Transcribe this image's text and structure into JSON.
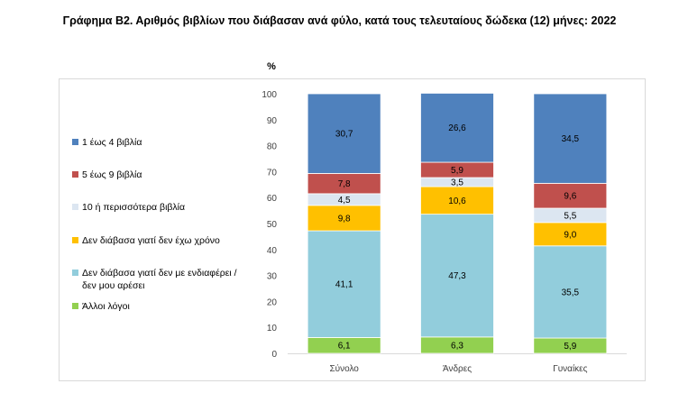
{
  "title": "Γράφημα Β2. Αριθμός βιβλίων που διάβασαν ανά φύλο, κατά τους τελευταίους δώδεκα (12) μήνες: 2022",
  "chart_data": {
    "type": "bar",
    "stacked": true,
    "title": "Γράφημα Β2. Αριθμός βιβλίων που διάβασαν ανά φύλο, κατά τους τελευταίους δώδεκα (12) μήνες: 2022",
    "ylabel": "%",
    "ylim": [
      0,
      100
    ],
    "yticks": [
      0,
      10,
      20,
      30,
      40,
      50,
      60,
      70,
      80,
      90,
      100
    ],
    "categories": [
      "Σύνολο",
      "Άνδρες",
      "Γυναίκες"
    ],
    "series": [
      {
        "name": "Άλλοι λόγοι",
        "color": "#92d050",
        "values": [
          6.1,
          6.3,
          5.9
        ],
        "labels": [
          "6,1",
          "6,3",
          "5,9"
        ]
      },
      {
        "name": "Δεν διάβασα γιατί δεν με ενδιαφέρει / δεν μου αρέσει",
        "label_lines": [
          "Δεν διάβασα γιατί δεν με ενδιαφέρει /",
          "δεν μου αρέσει"
        ],
        "color": "#92cddc",
        "values": [
          41.1,
          47.3,
          35.5
        ],
        "labels": [
          "41,1",
          "47,3",
          "35,5"
        ]
      },
      {
        "name": "Δεν διάβασα γιατί δεν έχω χρόνο",
        "color": "#ffc000",
        "values": [
          9.8,
          10.6,
          9.0
        ],
        "labels": [
          "9,8",
          "10,6",
          "9,0"
        ]
      },
      {
        "name": "10 ή περισσότερα βιβλία",
        "color": "#dce6f1",
        "values": [
          4.5,
          3.5,
          5.5
        ],
        "labels": [
          "4,5",
          "3,5",
          "5,5"
        ]
      },
      {
        "name": "5 έως 9 βιβλία",
        "color": "#c0504d",
        "values": [
          7.8,
          5.9,
          9.6
        ],
        "labels": [
          "7,8",
          "5,9",
          "9,6"
        ]
      },
      {
        "name": "1 έως 4 βιβλία",
        "color": "#4f81bd",
        "values": [
          30.7,
          26.6,
          34.5
        ],
        "labels": [
          "30,7",
          "26,6",
          "34,5"
        ]
      }
    ],
    "legend": [
      {
        "name": "1 έως 4 βιβλία",
        "color": "#4f81bd"
      },
      {
        "name": "5 έως 9 βιβλία",
        "color": "#c0504d"
      },
      {
        "name": "10 ή περισσότερα βιβλία",
        "color": "#dce6f1"
      },
      {
        "name": "Δεν διάβασα γιατί δεν έχω χρόνο",
        "color": "#ffc000"
      },
      {
        "name": "Δεν διάβασα γιατί δεν με ενδιαφέρει / δεν μου αρέσει",
        "label_lines": [
          "Δεν διάβασα γιατί δεν με ενδιαφέρει /",
          "δεν μου αρέσει"
        ],
        "color": "#92cddc"
      },
      {
        "name": "Άλλοι λόγοι",
        "color": "#92d050"
      }
    ],
    "legend_position": "left",
    "grid": false
  }
}
